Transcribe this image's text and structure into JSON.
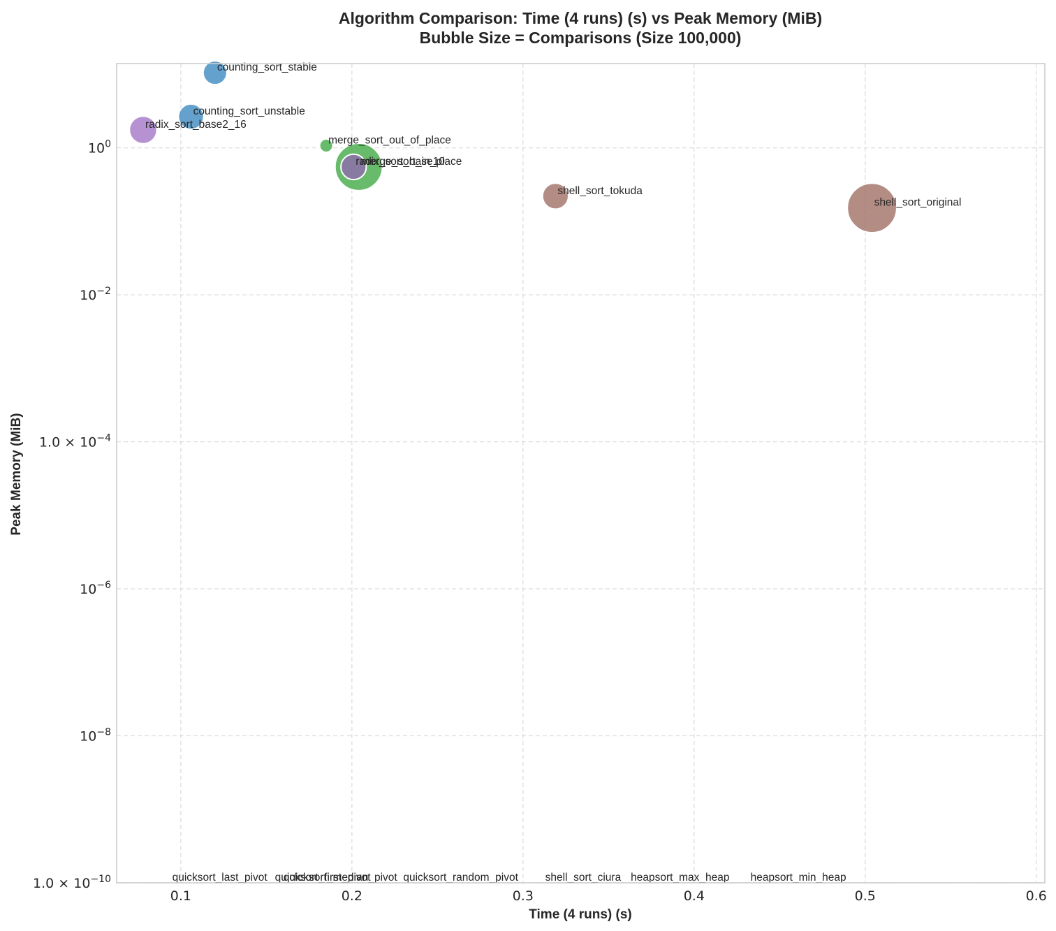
{
  "chart_data": {
    "type": "scatter",
    "title": "Algorithm Comparison: Time (4 runs) (s) vs Peak Memory (MiB)",
    "subtitle": "Bubble Size = Comparisons (Size 100,000)",
    "xlabel": "Time (4 runs) (s)",
    "ylabel": "Peak Memory (MiB)",
    "xscale": "linear",
    "yscale": "log",
    "xlim": [
      0.0625,
      0.605
    ],
    "ylim": [
      1e-10,
      14
    ],
    "grid": true,
    "legend": "none",
    "x_ticks": [
      {
        "value": 0.1,
        "label": "0.1"
      },
      {
        "value": 0.2,
        "label": "0.2"
      },
      {
        "value": 0.3,
        "label": "0.3"
      },
      {
        "value": 0.4,
        "label": "0.4"
      },
      {
        "value": 0.5,
        "label": "0.5"
      },
      {
        "value": 0.6,
        "label": "0.6"
      }
    ],
    "y_ticks": [
      {
        "value": 1,
        "base": "10",
        "exp": "0",
        "mult": ""
      },
      {
        "value": 0.01,
        "base": "10",
        "exp": "−2",
        "mult": ""
      },
      {
        "value": 0.0001,
        "base": "10",
        "exp": "−4",
        "mult": "1.0 × "
      },
      {
        "value": 1e-06,
        "base": "10",
        "exp": "−6",
        "mult": ""
      },
      {
        "value": 1e-08,
        "base": "10",
        "exp": "−8",
        "mult": ""
      },
      {
        "value": 1e-10,
        "base": "10",
        "exp": "−10",
        "mult": "1.0 × "
      }
    ],
    "points": [
      {
        "name": "counting_sort_stable",
        "x": 0.12,
        "y": 10.5,
        "size": 290,
        "color": "#4a90c4"
      },
      {
        "name": "counting_sort_unstable",
        "x": 0.106,
        "y": 2.65,
        "size": 330,
        "color": "#4a90c4"
      },
      {
        "name": "radix_sort_base2_16",
        "x": 0.078,
        "y": 1.75,
        "size": 390,
        "color": "#a97fcb"
      },
      {
        "name": "merge_sort_out_of_place",
        "x": 0.185,
        "y": 1.07,
        "size": 90,
        "color": "#4caf50"
      },
      {
        "name": "merge_sort_in_place",
        "x": 0.204,
        "y": 0.55,
        "size": 1150,
        "color": "#4caf50"
      },
      {
        "name": "radix_sort_base10",
        "x": 0.201,
        "y": 0.55,
        "size": 330,
        "color": "#8e6faa"
      },
      {
        "name": "shell_sort_tokuda",
        "x": 0.319,
        "y": 0.22,
        "size": 345,
        "color": "#a6786f"
      },
      {
        "name": "shell_sort_original",
        "x": 0.504,
        "y": 0.152,
        "size": 1250,
        "color": "#a6786f"
      }
    ],
    "unplotted_labels": [
      {
        "name": "quicksort_last_pivot",
        "x": 0.095
      },
      {
        "name": "quicksort_first_pivot",
        "x": 0.155
      },
      {
        "name": "quicksort_median_pivot",
        "x": 0.16
      },
      {
        "name": "quicksort_random_pivot",
        "x": 0.23
      },
      {
        "name": "shell_sort_ciura",
        "x": 0.313
      },
      {
        "name": "heapsort_max_heap",
        "x": 0.363
      },
      {
        "name": "heapsort_min_heap",
        "x": 0.433
      }
    ]
  }
}
